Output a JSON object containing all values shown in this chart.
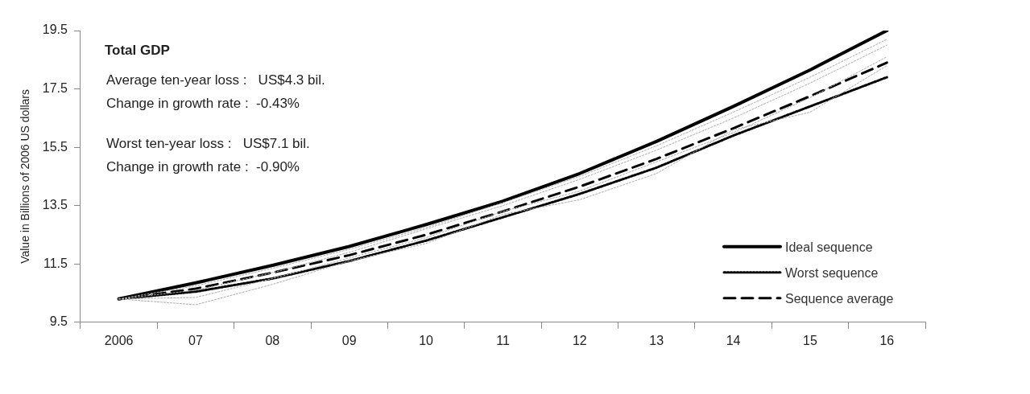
{
  "chart_data": {
    "type": "line",
    "title": "Total GDP",
    "ylabel": "Value in Billions of 2006 US dollars",
    "categories": [
      "2006",
      "07",
      "08",
      "09",
      "10",
      "11",
      "12",
      "13",
      "14",
      "15",
      "16"
    ],
    "ylim": [
      9.5,
      19.5
    ],
    "yticks": [
      9.5,
      11.5,
      13.5,
      15.5,
      17.5,
      19.5
    ],
    "grid": false,
    "legend": "bottom right",
    "marker": "none",
    "annotations": [
      "Average ten-year loss :   US$4.3 bil.",
      "Change in growth rate :  -0.43%",
      "Worst ten-year loss :   US$7.1 bil.",
      "Change in growth rate :  -0.90%"
    ],
    "series": [
      {
        "color": "#aaaaaa",
        "line_style": "dotted",
        "values": [
          10.3,
          10.1,
          10.8,
          11.6,
          12.2,
          13.2,
          13.7,
          14.6,
          16.1,
          16.7,
          18.3
        ]
      },
      {
        "color": "#aaaaaa",
        "line_style": "dotted",
        "values": [
          10.3,
          10.35,
          11.0,
          11.7,
          12.4,
          13.3,
          14.0,
          15.0,
          16.0,
          17.2,
          18.6
        ]
      },
      {
        "color": "#aaaaaa",
        "line_style": "dotted",
        "values": [
          10.3,
          10.6,
          11.2,
          11.9,
          12.7,
          13.5,
          14.4,
          15.4,
          16.5,
          17.7,
          19.0
        ]
      },
      {
        "color": "#aaaaaa",
        "line_style": "dotted",
        "values": [
          10.3,
          10.75,
          11.35,
          12.0,
          12.75,
          13.6,
          14.5,
          15.55,
          16.7,
          17.9,
          19.2
        ]
      },
      {
        "name": "Ideal sequence",
        "color": "#000000",
        "line_style": "solid",
        "values": [
          10.3,
          10.85,
          11.45,
          12.1,
          12.85,
          13.65,
          14.6,
          15.7,
          16.9,
          18.15,
          19.5
        ]
      },
      {
        "name": "Worst sequence",
        "color": "#000000",
        "line_style": "dotted",
        "values": [
          10.3,
          10.55,
          11.0,
          11.6,
          12.3,
          13.1,
          13.9,
          14.8,
          15.9,
          16.9,
          17.9
        ]
      },
      {
        "name": "Sequence average",
        "color": "#000000",
        "line_style": "dashed",
        "values": [
          10.3,
          10.65,
          11.2,
          11.8,
          12.5,
          13.3,
          14.15,
          15.1,
          16.15,
          17.25,
          18.4
        ]
      }
    ]
  }
}
